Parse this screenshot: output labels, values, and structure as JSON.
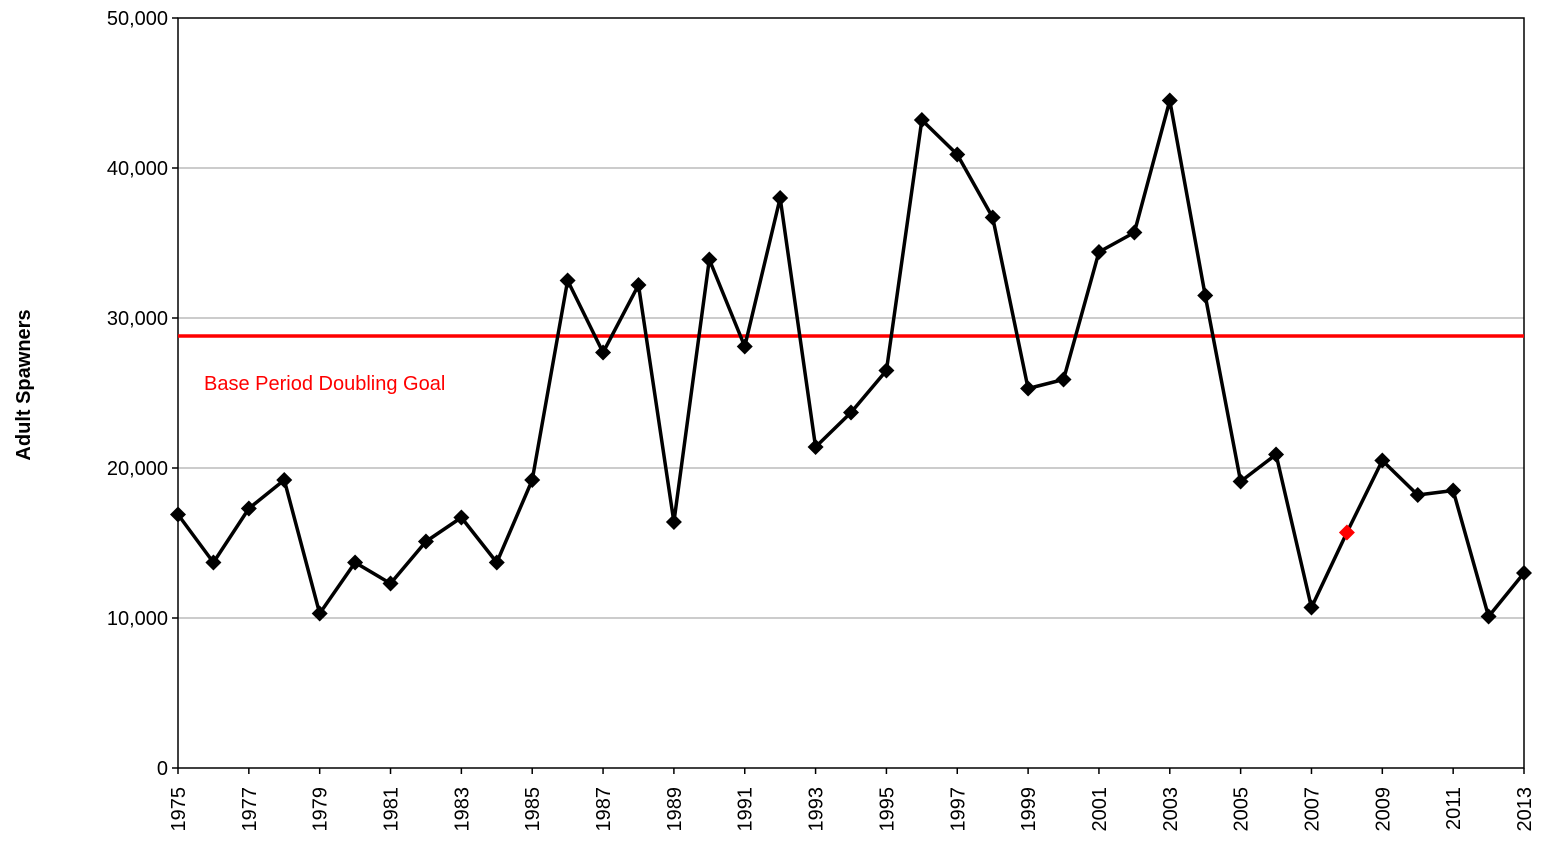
{
  "chart_data": {
    "type": "line",
    "y_label": "Adult Spawners",
    "x": [
      1975,
      1976,
      1977,
      1978,
      1979,
      1980,
      1981,
      1982,
      1983,
      1984,
      1985,
      1986,
      1987,
      1988,
      1989,
      1990,
      1991,
      1992,
      1993,
      1994,
      1995,
      1996,
      1997,
      1998,
      1999,
      2000,
      2001,
      2002,
      2003,
      2004,
      2005,
      2006,
      2007,
      2008,
      2009,
      2010,
      2011,
      2012,
      2013
    ],
    "series": [
      {
        "color": "#000000",
        "values": [
          16900,
          13700,
          17300,
          19200,
          10300,
          13700,
          12300,
          15100,
          16700,
          13700,
          19200,
          32500,
          27700,
          32200,
          16400,
          33900,
          28100,
          38000,
          21400,
          23700,
          26500,
          43200,
          40900,
          36700,
          25300,
          25900,
          34400,
          35700,
          44500,
          31500,
          19100,
          20900,
          10700,
          15700,
          20500,
          18200,
          18500,
          10100,
          13000
        ],
        "marker_colors": [
          "#000000",
          "#000000",
          "#000000",
          "#000000",
          "#000000",
          "#000000",
          "#000000",
          "#000000",
          "#000000",
          "#000000",
          "#000000",
          "#000000",
          "#000000",
          "#000000",
          "#000000",
          "#000000",
          "#000000",
          "#000000",
          "#000000",
          "#000000",
          "#000000",
          "#000000",
          "#000000",
          "#000000",
          "#000000",
          "#000000",
          "#000000",
          "#000000",
          "#000000",
          "#000000",
          "#000000",
          "#000000",
          "#000000",
          "#ff0000",
          "#000000",
          "#000000",
          "#000000",
          "#000000",
          "#000000"
        ]
      }
    ],
    "reference_lines": [
      {
        "value": 28800,
        "label": "Base Period Doubling Goal",
        "color": "#ff0000"
      }
    ],
    "xlim": [
      1975,
      2013
    ],
    "xticks": [
      1975,
      1977,
      1979,
      1981,
      1983,
      1985,
      1987,
      1989,
      1991,
      1993,
      1995,
      1997,
      1999,
      2001,
      2003,
      2005,
      2007,
      2009,
      2011,
      2013
    ],
    "ylim": [
      0,
      50000
    ],
    "yticks": [
      0,
      {
        "value": 10000,
        "label": "10,000"
      },
      {
        "value": 20000,
        "label": "20,000"
      },
      {
        "value": 30000,
        "label": "30,000"
      },
      {
        "value": 40000,
        "label": "40,000"
      },
      {
        "value": 50000,
        "label": "50,000"
      }
    ],
    "grid": true
  }
}
